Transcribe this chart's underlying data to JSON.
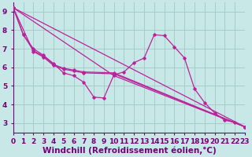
{
  "xlabel": "Windchill (Refroidissement éolien,°C)",
  "xlim": [
    0,
    23
  ],
  "ylim": [
    2.5,
    9.5
  ],
  "xticks": [
    0,
    1,
    2,
    3,
    4,
    5,
    6,
    7,
    8,
    9,
    10,
    11,
    12,
    13,
    14,
    15,
    16,
    17,
    18,
    19,
    20,
    21,
    22,
    23
  ],
  "yticks": [
    3,
    4,
    5,
    6,
    7,
    8,
    9
  ],
  "background_color": "#c8e8e8",
  "grid_color": "#a8cccc",
  "line_color": "#bb2299",
  "lines": [
    [
      [
        0,
        9.2
      ],
      [
        1,
        7.75
      ],
      [
        2,
        7.0
      ],
      [
        3,
        6.65
      ],
      [
        4,
        6.2
      ],
      [
        5,
        5.7
      ],
      [
        6,
        5.55
      ],
      [
        7,
        5.2
      ],
      [
        8,
        4.4
      ],
      [
        9,
        4.35
      ],
      [
        10,
        5.6
      ],
      [
        11,
        5.75
      ],
      [
        12,
        6.25
      ],
      [
        13,
        6.5
      ],
      [
        14,
        7.75
      ],
      [
        15,
        7.7
      ],
      [
        16,
        7.1
      ],
      [
        17,
        6.5
      ],
      [
        18,
        4.85
      ],
      [
        19,
        4.1
      ],
      [
        20,
        3.55
      ],
      [
        21,
        3.15
      ],
      [
        22,
        3.05
      ],
      [
        23,
        2.8
      ]
    ],
    [
      [
        0,
        9.2
      ],
      [
        1,
        7.75
      ],
      [
        2,
        6.9
      ],
      [
        3,
        6.6
      ],
      [
        4,
        6.15
      ],
      [
        5,
        5.95
      ],
      [
        6,
        5.85
      ],
      [
        7,
        5.75
      ],
      [
        10,
        5.7
      ],
      [
        23,
        2.8
      ]
    ],
    [
      [
        0,
        9.2
      ],
      [
        2,
        6.85
      ],
      [
        3,
        6.55
      ],
      [
        4,
        6.1
      ],
      [
        5,
        5.9
      ],
      [
        6,
        5.8
      ],
      [
        7,
        5.7
      ],
      [
        10,
        5.65
      ],
      [
        23,
        2.8
      ]
    ],
    [
      [
        0,
        9.2
      ],
      [
        10,
        5.55
      ],
      [
        23,
        2.8
      ]
    ],
    [
      [
        0,
        9.2
      ],
      [
        23,
        2.8
      ]
    ]
  ],
  "font_color": "#770077",
  "tick_fontsize": 6.5,
  "label_fontsize": 7.5
}
